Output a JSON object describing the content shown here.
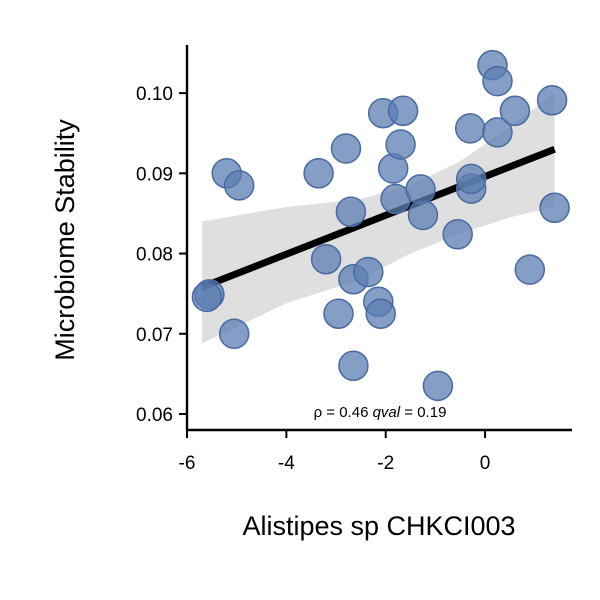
{
  "chart_data": {
    "type": "scatter",
    "xlabel": "Alistipes sp CHKCI003",
    "ylabel": "Microbiome Stability",
    "xlim": [
      -6.0,
      1.75
    ],
    "ylim": [
      0.058,
      0.106
    ],
    "xticks": [
      -6,
      -4,
      -2,
      0
    ],
    "yticks": [
      0.06,
      0.07,
      0.08,
      0.09,
      0.1
    ],
    "xtick_labels": [
      "-6",
      "-4",
      "-2",
      "0"
    ],
    "ytick_labels": [
      "0.06",
      "0.07",
      "0.08",
      "0.09",
      "0.10"
    ],
    "grid": false,
    "legend": "none",
    "colors": {
      "points": "#5b7db1",
      "point_edge": "#4a6aa3",
      "fit_line": "#000000",
      "confidence_band": "#dcdcdc"
    },
    "annotation": {
      "rho_symbol": "ρ",
      "rho_text": " = 0.46 ",
      "qval_label": "qval",
      "qval_text": " = 0.19"
    },
    "points": [
      {
        "x": -5.55,
        "y": 0.0749
      },
      {
        "x": -5.6,
        "y": 0.0746
      },
      {
        "x": -5.2,
        "y": 0.09
      },
      {
        "x": -4.95,
        "y": 0.0885
      },
      {
        "x": -5.05,
        "y": 0.07
      },
      {
        "x": -3.35,
        "y": 0.09
      },
      {
        "x": -3.2,
        "y": 0.0793
      },
      {
        "x": -2.95,
        "y": 0.0725
      },
      {
        "x": -2.8,
        "y": 0.0931
      },
      {
        "x": -2.7,
        "y": 0.0852
      },
      {
        "x": -2.65,
        "y": 0.0768
      },
      {
        "x": -2.65,
        "y": 0.066
      },
      {
        "x": -2.35,
        "y": 0.0777
      },
      {
        "x": -2.15,
        "y": 0.074
      },
      {
        "x": -2.1,
        "y": 0.0725
      },
      {
        "x": -2.05,
        "y": 0.0975
      },
      {
        "x": -1.85,
        "y": 0.0906
      },
      {
        "x": -1.8,
        "y": 0.0868
      },
      {
        "x": -1.7,
        "y": 0.0936
      },
      {
        "x": -1.65,
        "y": 0.0978
      },
      {
        "x": -1.3,
        "y": 0.088
      },
      {
        "x": -1.25,
        "y": 0.0848
      },
      {
        "x": -0.95,
        "y": 0.0635
      },
      {
        "x": -0.55,
        "y": 0.0824
      },
      {
        "x": -0.3,
        "y": 0.0956
      },
      {
        "x": -0.28,
        "y": 0.0881
      },
      {
        "x": -0.28,
        "y": 0.0893
      },
      {
        "x": 0.15,
        "y": 0.1035
      },
      {
        "x": 0.25,
        "y": 0.1015
      },
      {
        "x": 0.25,
        "y": 0.0951
      },
      {
        "x": 0.6,
        "y": 0.0978
      },
      {
        "x": 0.9,
        "y": 0.078
      },
      {
        "x": 1.35,
        "y": 0.0991
      },
      {
        "x": 1.4,
        "y": 0.0857
      }
    ],
    "fit_line": {
      "x": [
        -5.7,
        1.4
      ],
      "y": [
        0.0758,
        0.093
      ]
    },
    "confidence_band": {
      "x": [
        -5.7,
        -4.0,
        -2.5,
        -1.5,
        -0.5,
        0.5,
        1.4
      ],
      "upper": [
        0.084,
        0.0858,
        0.0868,
        0.0885,
        0.0915,
        0.0958,
        0.1
      ],
      "lower": [
        0.0688,
        0.0738,
        0.0768,
        0.08,
        0.0825,
        0.0845,
        0.0858
      ]
    }
  }
}
